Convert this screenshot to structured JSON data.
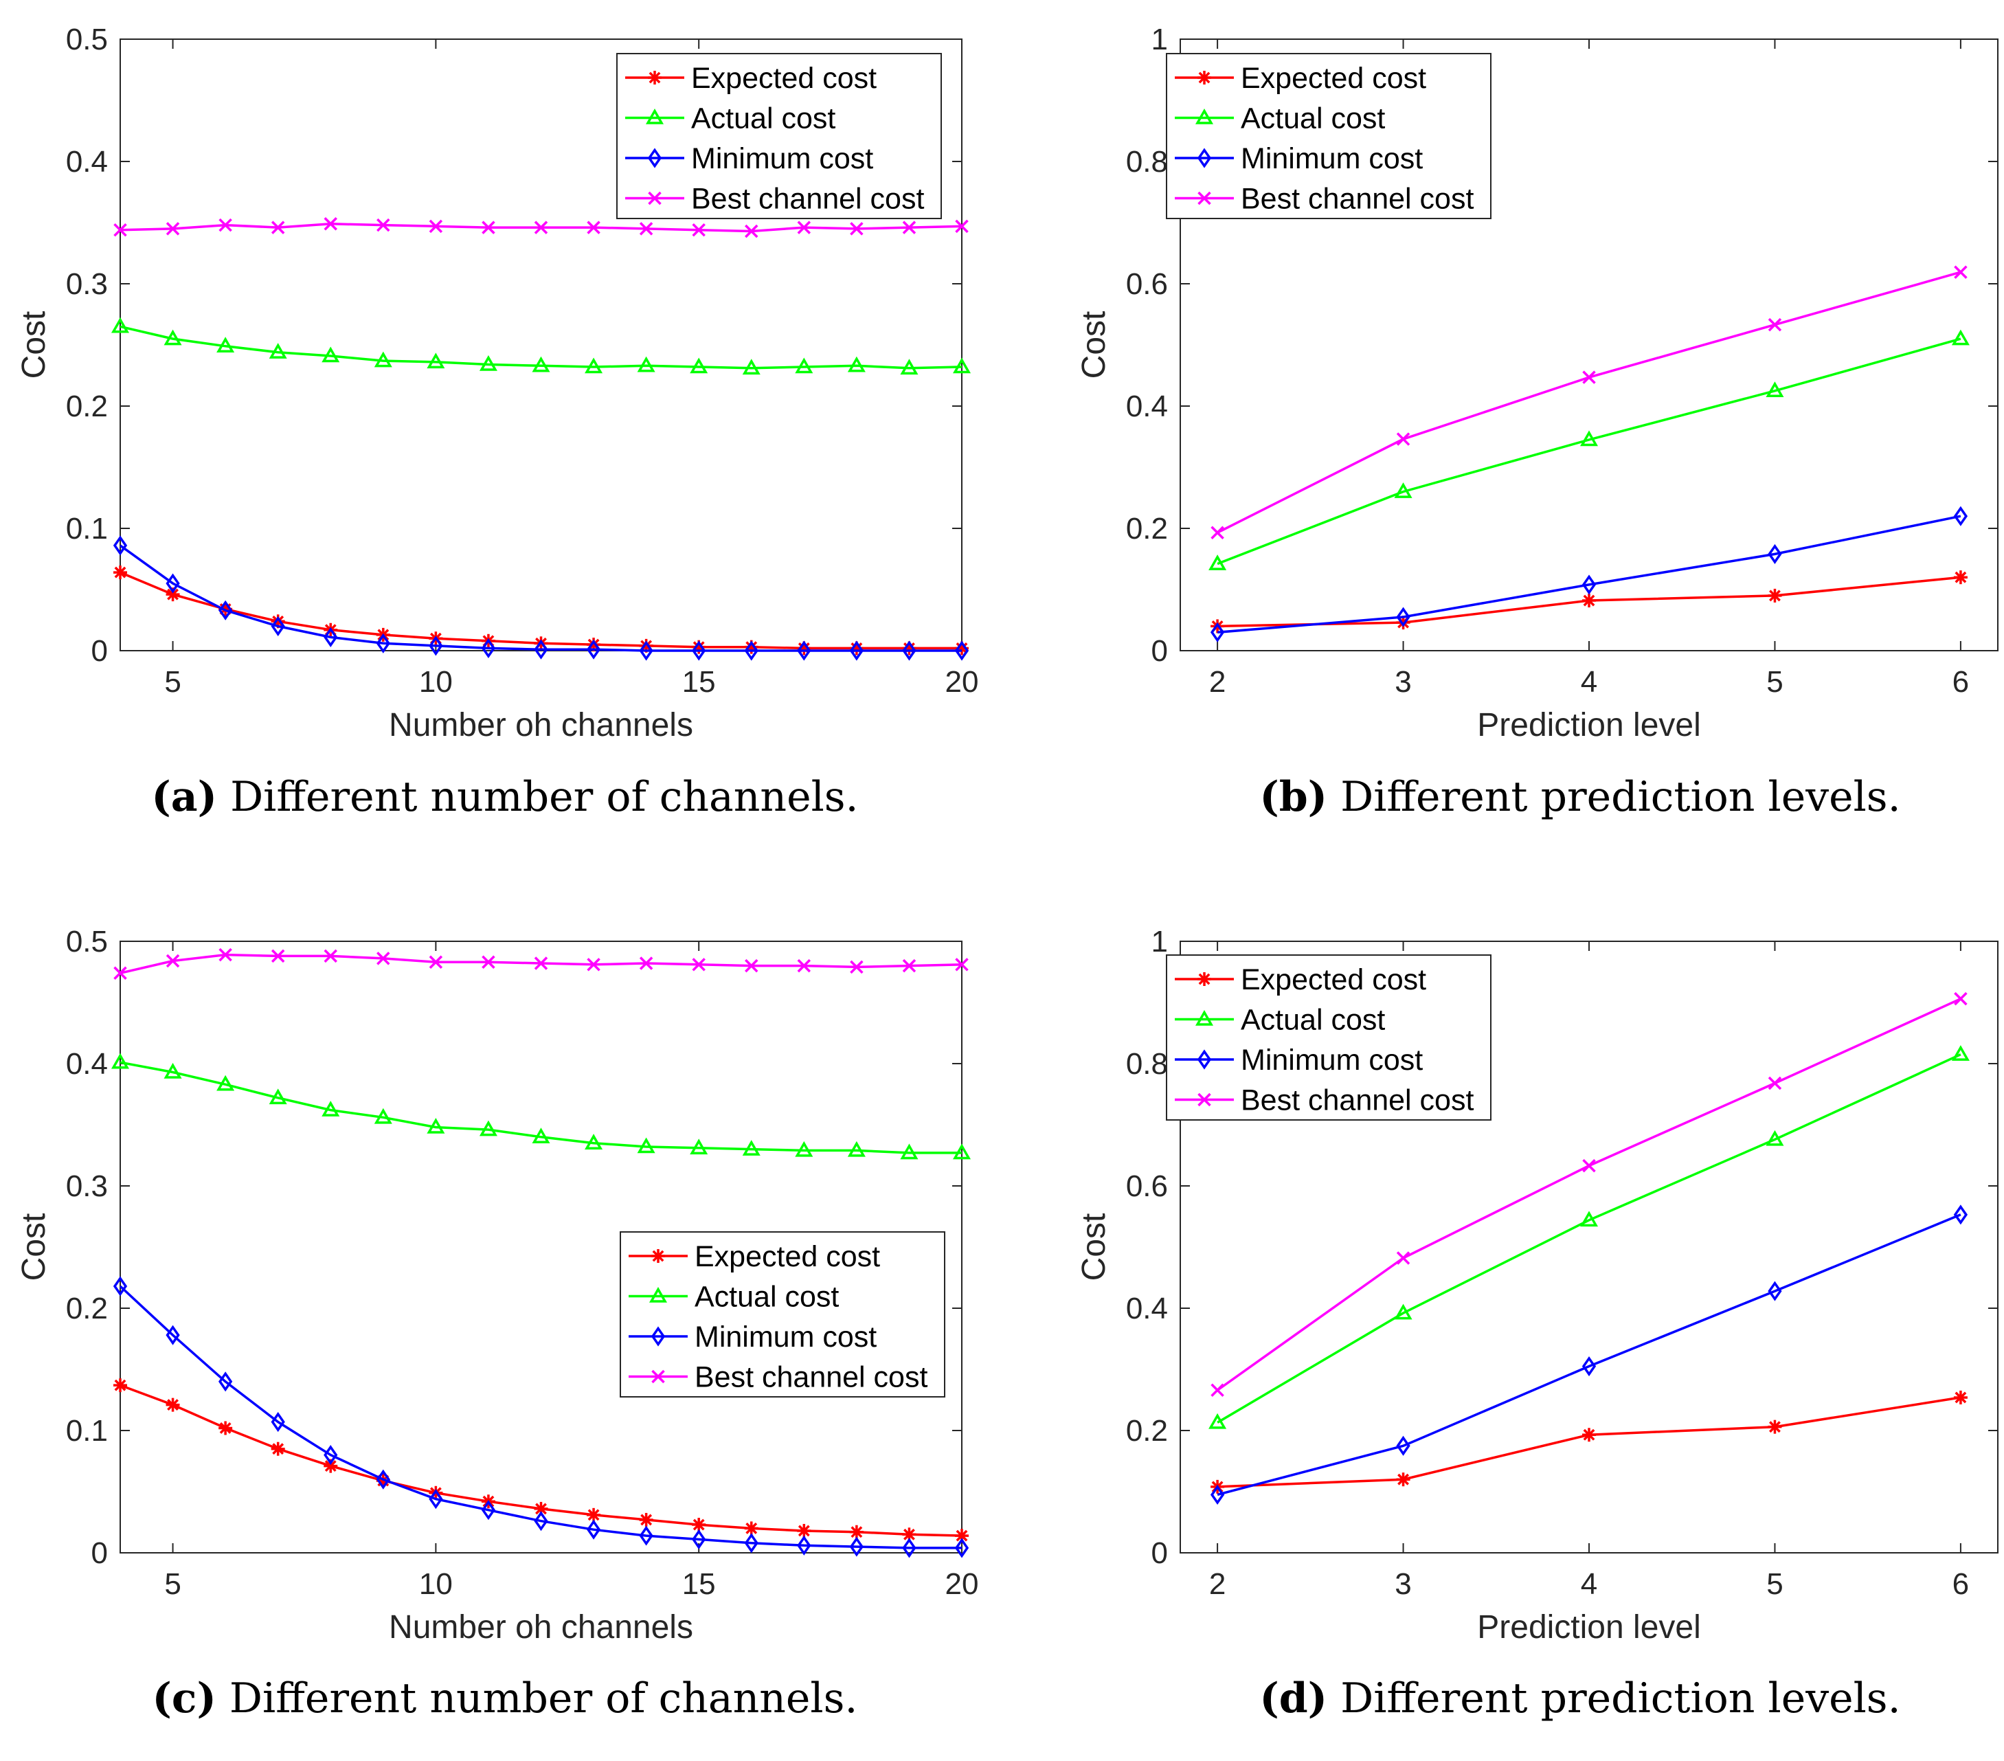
{
  "colors": {
    "expected": "#ff0000",
    "actual": "#00ff00",
    "minimum": "#0000ff",
    "best": "#ff00ff",
    "axis": "#262626"
  },
  "legend_markers": [
    "asterisk",
    "triangle",
    "diamond",
    "cross"
  ],
  "chart_data": [
    {
      "type": "line",
      "caption_letter": "(a)",
      "caption_text": "Different number of channels.",
      "xlabel": "Number oh channels",
      "ylabel": "Cost",
      "xlim": [
        4,
        20
      ],
      "ylim": [
        0,
        0.5
      ],
      "xticks": [
        5,
        10,
        15,
        20
      ],
      "xtick_labels": [
        "5",
        "10",
        "15",
        "20"
      ],
      "yticks": [
        0,
        0.1,
        0.2,
        0.3,
        0.4,
        0.5
      ],
      "ytick_labels": [
        "0",
        "0.1",
        "0.2",
        "0.3",
        "0.4",
        "0.5"
      ],
      "legend_position": "top-right",
      "x": [
        4,
        5,
        6,
        7,
        8,
        9,
        10,
        11,
        12,
        13,
        14,
        15,
        16,
        17,
        18,
        19,
        20
      ],
      "series": [
        {
          "name": "Expected cost",
          "marker": "asterisk",
          "values": [
            0.064,
            0.046,
            0.034,
            0.024,
            0.017,
            0.013,
            0.01,
            0.008,
            0.006,
            0.005,
            0.004,
            0.003,
            0.003,
            0.002,
            0.002,
            0.002,
            0.002
          ]
        },
        {
          "name": "Actual cost",
          "marker": "triangle",
          "values": [
            0.265,
            0.255,
            0.249,
            0.244,
            0.241,
            0.237,
            0.236,
            0.234,
            0.233,
            0.232,
            0.233,
            0.232,
            0.231,
            0.232,
            0.233,
            0.231,
            0.232
          ]
        },
        {
          "name": "Minimum cost",
          "marker": "diamond",
          "values": [
            0.086,
            0.055,
            0.033,
            0.02,
            0.011,
            0.006,
            0.004,
            0.002,
            0.001,
            0.001,
            0.0,
            0.0,
            0.0,
            0.0,
            0.0,
            0.0,
            0.0
          ]
        },
        {
          "name": "Best channel cost",
          "marker": "cross",
          "values": [
            0.344,
            0.345,
            0.348,
            0.346,
            0.349,
            0.348,
            0.347,
            0.346,
            0.346,
            0.346,
            0.345,
            0.344,
            0.343,
            0.346,
            0.345,
            0.346,
            0.347
          ]
        }
      ]
    },
    {
      "type": "line",
      "caption_letter": "(b)",
      "caption_text": "Different prediction levels.",
      "xlabel": "Prediction level",
      "ylabel": "Cost",
      "xlim": [
        1.8,
        6.2
      ],
      "ylim": [
        0,
        1
      ],
      "xticks": [
        2,
        3,
        4,
        5,
        6
      ],
      "xtick_labels": [
        "2",
        "3",
        "4",
        "5",
        "6"
      ],
      "yticks": [
        0,
        0.2,
        0.4,
        0.6,
        0.8,
        1
      ],
      "ytick_labels": [
        "0",
        "0.2",
        "0.4",
        "0.6",
        "0.8",
        "1"
      ],
      "legend_position": "top-left",
      "x": [
        2,
        3,
        4,
        5,
        6
      ],
      "series": [
        {
          "name": "Expected cost",
          "marker": "asterisk",
          "values": [
            0.04,
            0.046,
            0.082,
            0.09,
            0.12
          ]
        },
        {
          "name": "Actual cost",
          "marker": "triangle",
          "values": [
            0.142,
            0.26,
            0.345,
            0.425,
            0.51
          ]
        },
        {
          "name": "Minimum cost",
          "marker": "diamond",
          "values": [
            0.03,
            0.055,
            0.108,
            0.158,
            0.22
          ]
        },
        {
          "name": "Best channel cost",
          "marker": "cross",
          "values": [
            0.193,
            0.346,
            0.447,
            0.533,
            0.619
          ]
        }
      ]
    },
    {
      "type": "line",
      "caption_letter": "(c)",
      "caption_text": "Different number of channels.",
      "xlabel": "Number oh channels",
      "ylabel": "Cost",
      "xlim": [
        4,
        20
      ],
      "ylim": [
        0,
        0.5
      ],
      "xticks": [
        5,
        10,
        15,
        20
      ],
      "xtick_labels": [
        "5",
        "10",
        "15",
        "20"
      ],
      "yticks": [
        0,
        0.1,
        0.2,
        0.3,
        0.4,
        0.5
      ],
      "ytick_labels": [
        "0",
        "0.1",
        "0.2",
        "0.3",
        "0.4",
        "0.5"
      ],
      "legend_position": "middle-right",
      "x": [
        4,
        5,
        6,
        7,
        8,
        9,
        10,
        11,
        12,
        13,
        14,
        15,
        16,
        17,
        18,
        19,
        20
      ],
      "series": [
        {
          "name": "Expected cost",
          "marker": "asterisk",
          "values": [
            0.137,
            0.121,
            0.102,
            0.085,
            0.071,
            0.059,
            0.049,
            0.042,
            0.036,
            0.031,
            0.027,
            0.023,
            0.02,
            0.018,
            0.017,
            0.015,
            0.014
          ]
        },
        {
          "name": "Actual cost",
          "marker": "triangle",
          "values": [
            0.401,
            0.393,
            0.383,
            0.372,
            0.362,
            0.356,
            0.348,
            0.346,
            0.34,
            0.335,
            0.332,
            0.331,
            0.33,
            0.329,
            0.329,
            0.327,
            0.327
          ]
        },
        {
          "name": "Minimum cost",
          "marker": "diamond",
          "values": [
            0.218,
            0.178,
            0.14,
            0.107,
            0.08,
            0.06,
            0.044,
            0.035,
            0.026,
            0.019,
            0.014,
            0.011,
            0.008,
            0.006,
            0.005,
            0.004,
            0.004
          ]
        },
        {
          "name": "Best channel cost",
          "marker": "cross",
          "values": [
            0.474,
            0.484,
            0.489,
            0.488,
            0.488,
            0.486,
            0.483,
            0.483,
            0.482,
            0.481,
            0.482,
            0.481,
            0.48,
            0.48,
            0.479,
            0.48,
            0.481
          ]
        }
      ]
    },
    {
      "type": "line",
      "caption_letter": "(d)",
      "caption_text": "Different prediction levels.",
      "xlabel": "Prediction level",
      "ylabel": "Cost",
      "xlim": [
        1.8,
        6.2
      ],
      "ylim": [
        0,
        1
      ],
      "xticks": [
        2,
        3,
        4,
        5,
        6
      ],
      "xtick_labels": [
        "2",
        "3",
        "4",
        "5",
        "6"
      ],
      "yticks": [
        0,
        0.2,
        0.4,
        0.6,
        0.8,
        1
      ],
      "ytick_labels": [
        "0",
        "0.2",
        "0.4",
        "0.6",
        "0.8",
        "1"
      ],
      "legend_position": "top-left",
      "x": [
        2,
        3,
        4,
        5,
        6
      ],
      "series": [
        {
          "name": "Expected cost",
          "marker": "asterisk",
          "values": [
            0.108,
            0.12,
            0.193,
            0.206,
            0.254
          ]
        },
        {
          "name": "Actual cost",
          "marker": "triangle",
          "values": [
            0.213,
            0.392,
            0.544,
            0.676,
            0.815
          ]
        },
        {
          "name": "Minimum cost",
          "marker": "diamond",
          "values": [
            0.095,
            0.175,
            0.305,
            0.428,
            0.553
          ]
        },
        {
          "name": "Best channel cost",
          "marker": "cross",
          "values": [
            0.266,
            0.482,
            0.633,
            0.768,
            0.906
          ]
        }
      ]
    }
  ]
}
